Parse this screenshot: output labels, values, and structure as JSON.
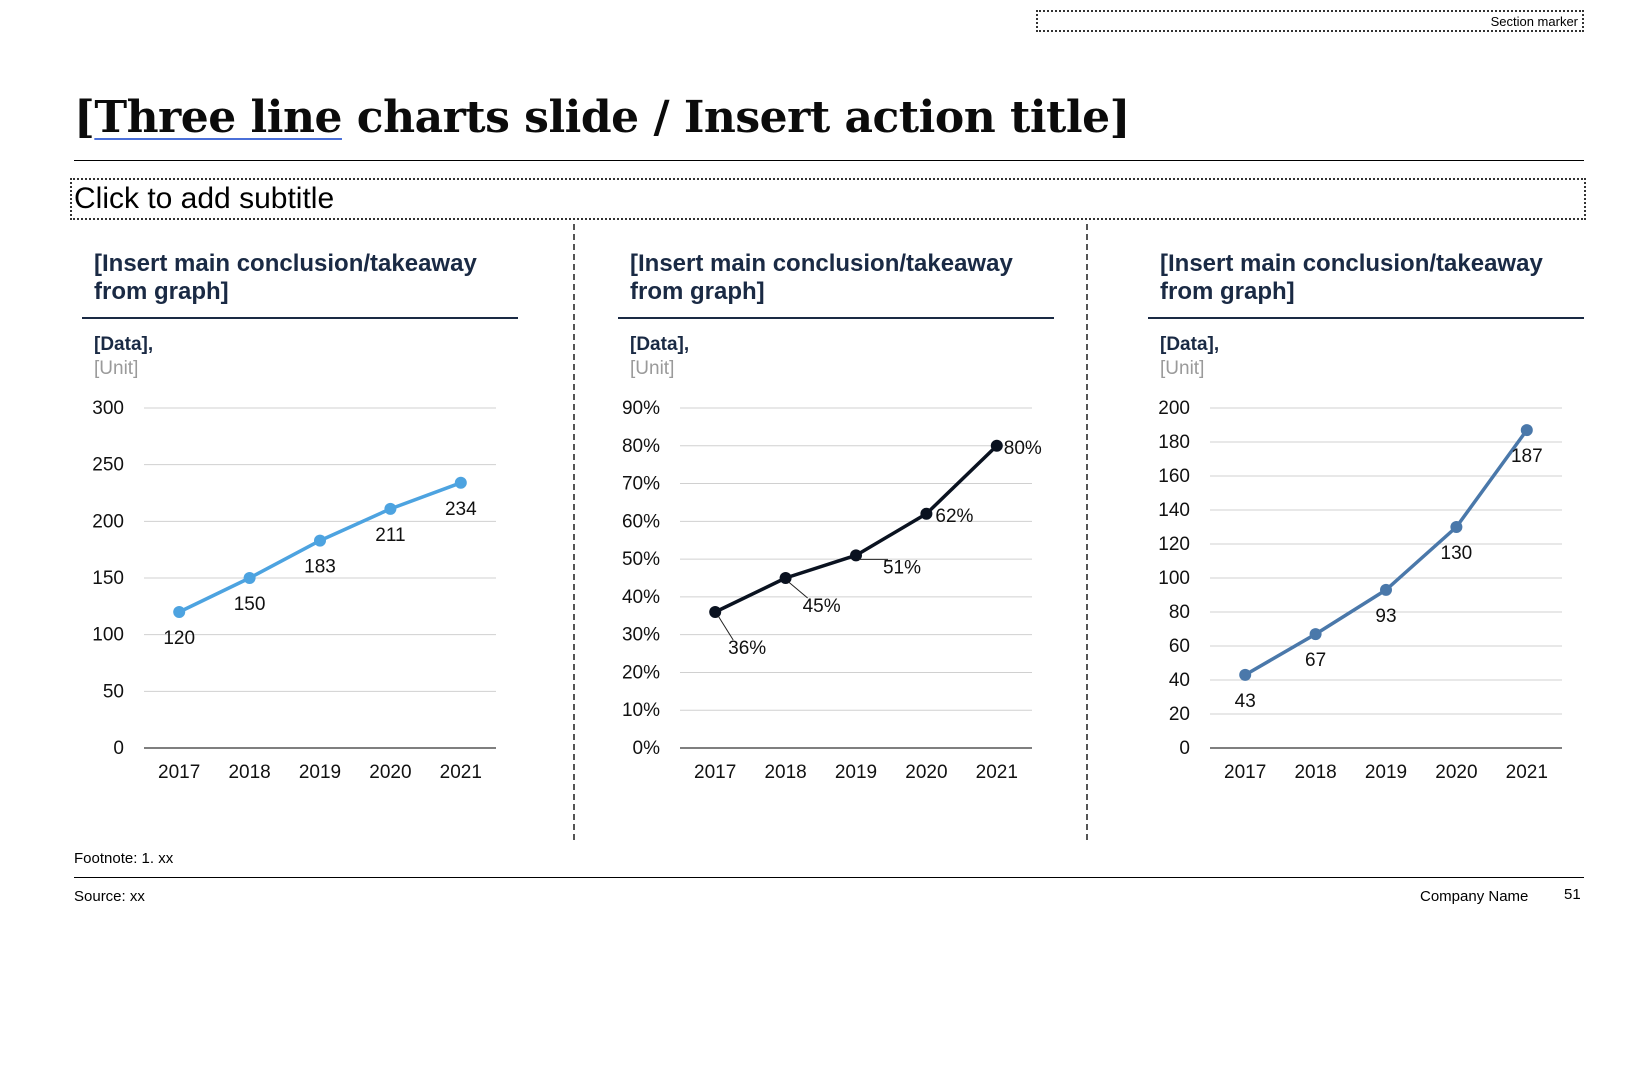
{
  "section_marker": "Section marker",
  "title_underlined": "Three line",
  "title_rest": " charts slide / Insert action title]",
  "title_open_bracket": "[",
  "subtitle": "Click to add subtitle",
  "footnote": "Footnote: 1. xx",
  "source": "Source: xx",
  "company": "Company Name",
  "page_number": "51",
  "panels": [
    {
      "takeaway": "[Insert main conclusion/takeaway from graph]",
      "data_label": "[Data],",
      "unit_label": "[Unit]"
    },
    {
      "takeaway": "[Insert main conclusion/takeaway from graph]",
      "data_label": "[Data],",
      "unit_label": "[Unit]"
    },
    {
      "takeaway": "[Insert main conclusion/takeaway from graph]",
      "data_label": "[Data],",
      "unit_label": "[Unit]"
    }
  ],
  "chart_data": [
    {
      "type": "line",
      "x": [
        "2017",
        "2018",
        "2019",
        "2020",
        "2021"
      ],
      "values": [
        120,
        150,
        183,
        211,
        234
      ],
      "value_labels": [
        "120",
        "150",
        "183",
        "211",
        "234"
      ],
      "ylim": [
        0,
        300
      ],
      "yticks": [
        0,
        50,
        100,
        150,
        200,
        250,
        300
      ],
      "ytick_labels": [
        "0",
        "50",
        "100",
        "150",
        "200",
        "250",
        "300"
      ],
      "color": "#4da3e0",
      "grid": true
    },
    {
      "type": "line",
      "x": [
        "2017",
        "2018",
        "2019",
        "2020",
        "2021"
      ],
      "values": [
        36,
        45,
        51,
        62,
        80
      ],
      "value_labels": [
        "36%",
        "45%",
        "51%",
        "62%",
        "80%"
      ],
      "ylim": [
        0,
        90
      ],
      "yticks": [
        0,
        10,
        20,
        30,
        40,
        50,
        60,
        70,
        80,
        90
      ],
      "ytick_labels": [
        "0%",
        "10%",
        "20%",
        "30%",
        "40%",
        "50%",
        "60%",
        "70%",
        "80%",
        "90%"
      ],
      "color": "#0a1220",
      "grid": true
    },
    {
      "type": "line",
      "x": [
        "2017",
        "2018",
        "2019",
        "2020",
        "2021"
      ],
      "values": [
        43,
        67,
        93,
        130,
        187
      ],
      "value_labels": [
        "43",
        "67",
        "93",
        "130",
        "187"
      ],
      "ylim": [
        0,
        200
      ],
      "yticks": [
        0,
        20,
        40,
        60,
        80,
        100,
        120,
        140,
        160,
        180,
        200
      ],
      "ytick_labels": [
        "0",
        "20",
        "40",
        "60",
        "80",
        "100",
        "120",
        "140",
        "160",
        "180",
        "200"
      ],
      "color": "#4a78aa",
      "grid": true
    }
  ]
}
